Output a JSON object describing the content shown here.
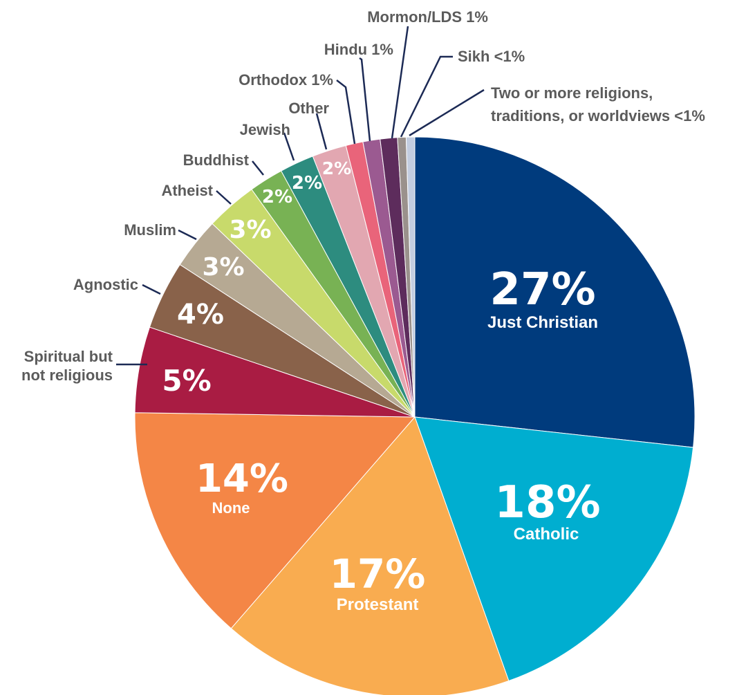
{
  "chart_data": {
    "type": "pie",
    "title": "",
    "slices": [
      {
        "label": "Just Christian",
        "value": 27,
        "display": "27%",
        "color": "#003b7d"
      },
      {
        "label": "Catholic",
        "value": 18,
        "display": "18%",
        "color": "#00aed0"
      },
      {
        "label": "Protestant",
        "value": 17,
        "display": "17%",
        "color": "#f9ac50"
      },
      {
        "label": "None",
        "value": 14,
        "display": "14%",
        "color": "#f48646"
      },
      {
        "label": "Spiritual but not religious",
        "value": 5,
        "display": "5%",
        "color": "#a91c43"
      },
      {
        "label": "Agnostic",
        "value": 4,
        "display": "4%",
        "color": "#89624a"
      },
      {
        "label": "Muslim",
        "value": 3,
        "display": "3%",
        "color": "#b6a993"
      },
      {
        "label": "Atheist",
        "value": 3,
        "display": "3%",
        "color": "#c8da6b"
      },
      {
        "label": "Buddhist",
        "value": 2,
        "display": "2%",
        "color": "#78b254"
      },
      {
        "label": "Jewish",
        "value": 2,
        "display": "2%",
        "color": "#2d8c7f"
      },
      {
        "label": "Other",
        "value": 2,
        "display": "2%",
        "color": "#e2a7b1"
      },
      {
        "label": "Orthodox",
        "value": 1,
        "display": "1%",
        "color": "#e9647a"
      },
      {
        "label": "Hindu",
        "value": 1,
        "display": "1%",
        "color": "#9b5a91"
      },
      {
        "label": "Mormon/LDS",
        "value": 1,
        "display": "1%",
        "color": "#5d2c5c"
      },
      {
        "label": "Sikh",
        "value": 0.5,
        "display": "<1%",
        "color": "#9a918c"
      },
      {
        "label": "Two or more religions, traditions, or worldviews",
        "value": 0.5,
        "display": "<1%",
        "color": "#c3cde0"
      }
    ],
    "labels": {
      "just_christian": {
        "pct": "27%",
        "name": "Just Christian"
      },
      "catholic": {
        "pct": "18%",
        "name": "Catholic"
      },
      "protestant": {
        "pct": "17%",
        "name": "Protestant"
      },
      "none": {
        "pct": "14%",
        "name": "None"
      },
      "spiritual_pct": "5%",
      "agnostic_pct": "4%",
      "muslim_pct": "3%",
      "atheist_pct": "3%",
      "buddhist_pct": "2%",
      "jewish_pct": "2%",
      "other_pct": "2%",
      "spiritual_line1": "Spiritual but",
      "spiritual_line2": "not religious",
      "agnostic": "Agnostic",
      "muslim": "Muslim",
      "atheist": "Atheist",
      "buddhist": "Buddhist",
      "jewish": "Jewish",
      "other": "Other",
      "orthodox": "Orthodox 1%",
      "hindu": "Hindu 1%",
      "mormon": "Mormon/LDS 1%",
      "sikh": "Sikh <1%",
      "two_more_line1": "Two or more religions,",
      "two_more_line2": "traditions, or worldviews <1%"
    }
  }
}
